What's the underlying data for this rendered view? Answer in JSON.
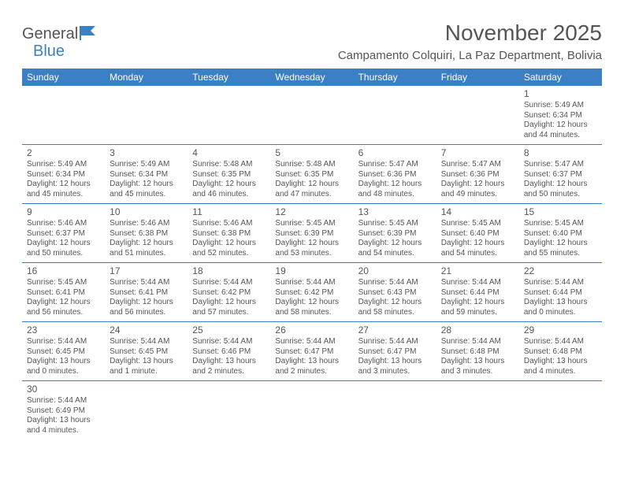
{
  "logo": {
    "text_a": "General",
    "text_b": "Blue"
  },
  "title": "November 2025",
  "location": "Campamento Colquiri, La Paz Department, Bolivia",
  "colors": {
    "accent": "#3b7fc4",
    "text": "#555555",
    "bg": "#ffffff"
  },
  "day_headers": [
    "Sunday",
    "Monday",
    "Tuesday",
    "Wednesday",
    "Thursday",
    "Friday",
    "Saturday"
  ],
  "weeks": [
    [
      null,
      null,
      null,
      null,
      null,
      null,
      {
        "n": "1",
        "sr": "Sunrise: 5:49 AM",
        "ss": "Sunset: 6:34 PM",
        "d1": "Daylight: 12 hours",
        "d2": "and 44 minutes."
      }
    ],
    [
      {
        "n": "2",
        "sr": "Sunrise: 5:49 AM",
        "ss": "Sunset: 6:34 PM",
        "d1": "Daylight: 12 hours",
        "d2": "and 45 minutes."
      },
      {
        "n": "3",
        "sr": "Sunrise: 5:49 AM",
        "ss": "Sunset: 6:34 PM",
        "d1": "Daylight: 12 hours",
        "d2": "and 45 minutes."
      },
      {
        "n": "4",
        "sr": "Sunrise: 5:48 AM",
        "ss": "Sunset: 6:35 PM",
        "d1": "Daylight: 12 hours",
        "d2": "and 46 minutes."
      },
      {
        "n": "5",
        "sr": "Sunrise: 5:48 AM",
        "ss": "Sunset: 6:35 PM",
        "d1": "Daylight: 12 hours",
        "d2": "and 47 minutes."
      },
      {
        "n": "6",
        "sr": "Sunrise: 5:47 AM",
        "ss": "Sunset: 6:36 PM",
        "d1": "Daylight: 12 hours",
        "d2": "and 48 minutes."
      },
      {
        "n": "7",
        "sr": "Sunrise: 5:47 AM",
        "ss": "Sunset: 6:36 PM",
        "d1": "Daylight: 12 hours",
        "d2": "and 49 minutes."
      },
      {
        "n": "8",
        "sr": "Sunrise: 5:47 AM",
        "ss": "Sunset: 6:37 PM",
        "d1": "Daylight: 12 hours",
        "d2": "and 50 minutes."
      }
    ],
    [
      {
        "n": "9",
        "sr": "Sunrise: 5:46 AM",
        "ss": "Sunset: 6:37 PM",
        "d1": "Daylight: 12 hours",
        "d2": "and 50 minutes."
      },
      {
        "n": "10",
        "sr": "Sunrise: 5:46 AM",
        "ss": "Sunset: 6:38 PM",
        "d1": "Daylight: 12 hours",
        "d2": "and 51 minutes."
      },
      {
        "n": "11",
        "sr": "Sunrise: 5:46 AM",
        "ss": "Sunset: 6:38 PM",
        "d1": "Daylight: 12 hours",
        "d2": "and 52 minutes."
      },
      {
        "n": "12",
        "sr": "Sunrise: 5:45 AM",
        "ss": "Sunset: 6:39 PM",
        "d1": "Daylight: 12 hours",
        "d2": "and 53 minutes."
      },
      {
        "n": "13",
        "sr": "Sunrise: 5:45 AM",
        "ss": "Sunset: 6:39 PM",
        "d1": "Daylight: 12 hours",
        "d2": "and 54 minutes."
      },
      {
        "n": "14",
        "sr": "Sunrise: 5:45 AM",
        "ss": "Sunset: 6:40 PM",
        "d1": "Daylight: 12 hours",
        "d2": "and 54 minutes."
      },
      {
        "n": "15",
        "sr": "Sunrise: 5:45 AM",
        "ss": "Sunset: 6:40 PM",
        "d1": "Daylight: 12 hours",
        "d2": "and 55 minutes."
      }
    ],
    [
      {
        "n": "16",
        "sr": "Sunrise: 5:45 AM",
        "ss": "Sunset: 6:41 PM",
        "d1": "Daylight: 12 hours",
        "d2": "and 56 minutes."
      },
      {
        "n": "17",
        "sr": "Sunrise: 5:44 AM",
        "ss": "Sunset: 6:41 PM",
        "d1": "Daylight: 12 hours",
        "d2": "and 56 minutes."
      },
      {
        "n": "18",
        "sr": "Sunrise: 5:44 AM",
        "ss": "Sunset: 6:42 PM",
        "d1": "Daylight: 12 hours",
        "d2": "and 57 minutes."
      },
      {
        "n": "19",
        "sr": "Sunrise: 5:44 AM",
        "ss": "Sunset: 6:42 PM",
        "d1": "Daylight: 12 hours",
        "d2": "and 58 minutes."
      },
      {
        "n": "20",
        "sr": "Sunrise: 5:44 AM",
        "ss": "Sunset: 6:43 PM",
        "d1": "Daylight: 12 hours",
        "d2": "and 58 minutes."
      },
      {
        "n": "21",
        "sr": "Sunrise: 5:44 AM",
        "ss": "Sunset: 6:44 PM",
        "d1": "Daylight: 12 hours",
        "d2": "and 59 minutes."
      },
      {
        "n": "22",
        "sr": "Sunrise: 5:44 AM",
        "ss": "Sunset: 6:44 PM",
        "d1": "Daylight: 13 hours",
        "d2": "and 0 minutes."
      }
    ],
    [
      {
        "n": "23",
        "sr": "Sunrise: 5:44 AM",
        "ss": "Sunset: 6:45 PM",
        "d1": "Daylight: 13 hours",
        "d2": "and 0 minutes."
      },
      {
        "n": "24",
        "sr": "Sunrise: 5:44 AM",
        "ss": "Sunset: 6:45 PM",
        "d1": "Daylight: 13 hours",
        "d2": "and 1 minute."
      },
      {
        "n": "25",
        "sr": "Sunrise: 5:44 AM",
        "ss": "Sunset: 6:46 PM",
        "d1": "Daylight: 13 hours",
        "d2": "and 2 minutes."
      },
      {
        "n": "26",
        "sr": "Sunrise: 5:44 AM",
        "ss": "Sunset: 6:47 PM",
        "d1": "Daylight: 13 hours",
        "d2": "and 2 minutes."
      },
      {
        "n": "27",
        "sr": "Sunrise: 5:44 AM",
        "ss": "Sunset: 6:47 PM",
        "d1": "Daylight: 13 hours",
        "d2": "and 3 minutes."
      },
      {
        "n": "28",
        "sr": "Sunrise: 5:44 AM",
        "ss": "Sunset: 6:48 PM",
        "d1": "Daylight: 13 hours",
        "d2": "and 3 minutes."
      },
      {
        "n": "29",
        "sr": "Sunrise: 5:44 AM",
        "ss": "Sunset: 6:48 PM",
        "d1": "Daylight: 13 hours",
        "d2": "and 4 minutes."
      }
    ],
    [
      {
        "n": "30",
        "sr": "Sunrise: 5:44 AM",
        "ss": "Sunset: 6:49 PM",
        "d1": "Daylight: 13 hours",
        "d2": "and 4 minutes."
      },
      null,
      null,
      null,
      null,
      null,
      null
    ]
  ]
}
